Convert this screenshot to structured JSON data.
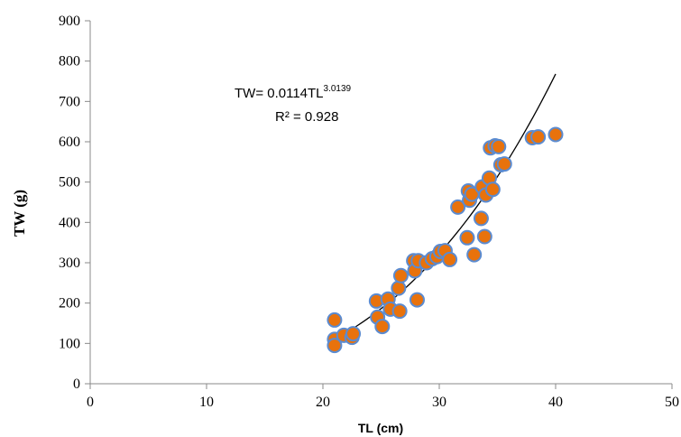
{
  "chart_data": {
    "type": "scatter",
    "xlabel": "TL (cm)",
    "ylabel": "TW (g)",
    "xlim": [
      0,
      50
    ],
    "ylim": [
      0,
      900
    ],
    "xticks": [
      "0",
      "10",
      "20",
      "30",
      "40",
      "50"
    ],
    "yticks": [
      "0",
      "100",
      "200",
      "300",
      "400",
      "500",
      "600",
      "700",
      "800",
      "900"
    ],
    "grid": false,
    "legend": "none",
    "marker_fill": "#E8720C",
    "marker_edge": "#5B8BD0",
    "trendline_color": "#000000",
    "annotation": {
      "equation_prefix": "TW= 0.0114TL",
      "equation_exponent": "3.0139",
      "r_squared": "R² = 0.928"
    },
    "trendline": {
      "a": 0.0114,
      "b": 3.0139,
      "x_start": 21,
      "x_end": 40
    },
    "points": [
      {
        "x": 21.0,
        "y": 158
      },
      {
        "x": 21.0,
        "y": 110
      },
      {
        "x": 21.0,
        "y": 95
      },
      {
        "x": 21.8,
        "y": 120
      },
      {
        "x": 22.5,
        "y": 115
      },
      {
        "x": 22.6,
        "y": 124
      },
      {
        "x": 24.6,
        "y": 205
      },
      {
        "x": 24.7,
        "y": 165
      },
      {
        "x": 25.1,
        "y": 142
      },
      {
        "x": 25.6,
        "y": 210
      },
      {
        "x": 25.8,
        "y": 185
      },
      {
        "x": 26.5,
        "y": 237
      },
      {
        "x": 26.6,
        "y": 180
      },
      {
        "x": 26.7,
        "y": 268
      },
      {
        "x": 27.8,
        "y": 305
      },
      {
        "x": 27.9,
        "y": 280
      },
      {
        "x": 28.1,
        "y": 208
      },
      {
        "x": 28.2,
        "y": 305
      },
      {
        "x": 28.9,
        "y": 300
      },
      {
        "x": 29.4,
        "y": 310
      },
      {
        "x": 29.8,
        "y": 315
      },
      {
        "x": 30.1,
        "y": 328
      },
      {
        "x": 30.5,
        "y": 330
      },
      {
        "x": 30.9,
        "y": 308
      },
      {
        "x": 31.6,
        "y": 438
      },
      {
        "x": 32.4,
        "y": 362
      },
      {
        "x": 32.5,
        "y": 478
      },
      {
        "x": 32.6,
        "y": 455
      },
      {
        "x": 32.8,
        "y": 470
      },
      {
        "x": 33.0,
        "y": 320
      },
      {
        "x": 33.6,
        "y": 410
      },
      {
        "x": 33.7,
        "y": 488
      },
      {
        "x": 33.9,
        "y": 365
      },
      {
        "x": 34.0,
        "y": 468
      },
      {
        "x": 34.3,
        "y": 510
      },
      {
        "x": 34.4,
        "y": 585
      },
      {
        "x": 34.6,
        "y": 482
      },
      {
        "x": 34.8,
        "y": 590
      },
      {
        "x": 35.1,
        "y": 588
      },
      {
        "x": 35.3,
        "y": 543
      },
      {
        "x": 35.6,
        "y": 545
      },
      {
        "x": 38.0,
        "y": 610
      },
      {
        "x": 38.5,
        "y": 612
      },
      {
        "x": 40.0,
        "y": 618
      }
    ]
  }
}
